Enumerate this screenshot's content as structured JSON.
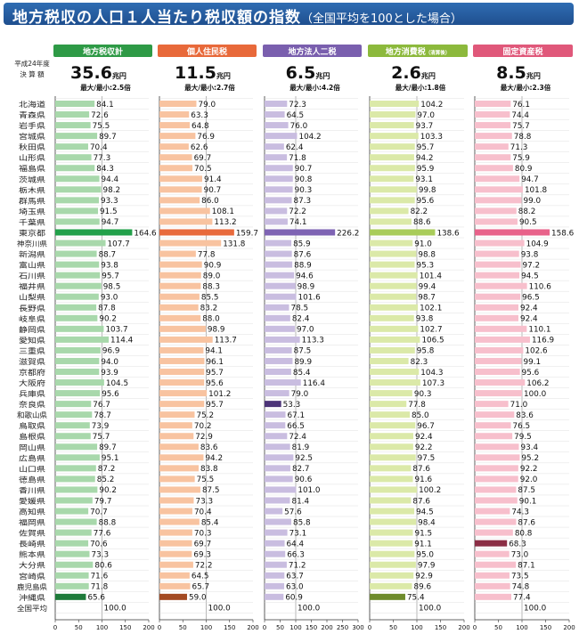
{
  "title": "地方税収の人口１人当たり税収額の指数",
  "subtitle": "（全国平均を100とした場合）",
  "year_label_1": "平成24年度",
  "year_label_2": "決 算 額",
  "chart_data": {
    "type": "bar",
    "orientation": "horizontal",
    "baseline_value": 100,
    "categories": [
      "北海道",
      "青森県",
      "岩手県",
      "宮城県",
      "秋田県",
      "山形県",
      "福島県",
      "茨城県",
      "栃木県",
      "群馬県",
      "埼玉県",
      "千葉県",
      "東京都",
      "神奈川県",
      "新潟県",
      "富山県",
      "石川県",
      "福井県",
      "山梨県",
      "長野県",
      "岐阜県",
      "静岡県",
      "愛知県",
      "三重県",
      "滋賀県",
      "京都府",
      "大阪府",
      "兵庫県",
      "奈良県",
      "和歌山県",
      "鳥取県",
      "島根県",
      "岡山県",
      "広島県",
      "山口県",
      "徳島県",
      "香川県",
      "愛媛県",
      "高知県",
      "福岡県",
      "佐賀県",
      "長崎県",
      "熊本県",
      "大分県",
      "宮崎県",
      "鹿児島県",
      "沖縄県",
      "全国平均"
    ],
    "series": [
      {
        "name": "地方税収計",
        "total": "35.6",
        "unit": "兆円",
        "ratio": "最大/最小:2.5倍",
        "xlim": [
          0,
          200
        ],
        "ticks": [
          "0",
          "50",
          "100",
          "150",
          "200"
        ],
        "color": "#a8d8ab",
        "header_color": "#2e9a46",
        "max_color": "#22a04a",
        "min_color": "#1e7a3a",
        "max_index": 12,
        "min_index": 46,
        "values": [
          84.1,
          72.6,
          75.5,
          89.7,
          70.4,
          77.3,
          84.3,
          94.4,
          98.2,
          93.3,
          91.5,
          94.7,
          164.6,
          107.7,
          88.7,
          93.8,
          95.7,
          98.5,
          93.0,
          87.8,
          90.2,
          103.7,
          114.4,
          96.9,
          94.0,
          93.9,
          104.5,
          95.6,
          76.7,
          78.7,
          73.9,
          75.7,
          89.7,
          95.1,
          87.2,
          85.2,
          90.2,
          79.7,
          70.7,
          88.8,
          77.6,
          70.6,
          73.3,
          80.6,
          71.6,
          71.8,
          65.6,
          100.0
        ]
      },
      {
        "name": "個人住民税",
        "total": "11.5",
        "unit": "兆円",
        "ratio": "最大/最小:2.7倍",
        "xlim": [
          0,
          200
        ],
        "ticks": [
          "0",
          "50",
          "100",
          "150",
          "200"
        ],
        "color": "#f8c3a0",
        "header_color": "#e8693a",
        "max_color": "#e86a3c",
        "min_color": "#a34a22",
        "max_index": 12,
        "min_index": 46,
        "values": [
          79.0,
          63.3,
          64.8,
          76.9,
          62.6,
          69.7,
          70.5,
          91.4,
          90.7,
          86.0,
          108.1,
          113.2,
          159.7,
          131.8,
          77.8,
          90.9,
          89.0,
          88.3,
          85.5,
          83.2,
          88.0,
          98.9,
          113.7,
          94.1,
          96.1,
          95.7,
          95.6,
          101.2,
          95.7,
          75.2,
          70.2,
          72.9,
          83.6,
          94.2,
          83.8,
          75.5,
          87.5,
          73.3,
          70.4,
          85.4,
          70.3,
          69.7,
          69.3,
          72.2,
          64.5,
          65.7,
          59.0,
          100.0
        ]
      },
      {
        "name": "地方法人二税",
        "total": "6.5",
        "unit": "兆円",
        "ratio": "最大/最小:4.2倍",
        "xlim": [
          0,
          300
        ],
        "ticks": [
          "0",
          "50",
          "100",
          "150",
          "200",
          "250",
          "300"
        ],
        "color": "#c9bde0",
        "header_color": "#7a5fae",
        "max_color": "#7e63b3",
        "min_color": "#4c3478",
        "max_index": 12,
        "min_index": 28,
        "values": [
          72.3,
          64.5,
          76.0,
          104.2,
          62.4,
          71.8,
          90.7,
          90.8,
          90.3,
          87.3,
          72.2,
          74.1,
          226.2,
          85.9,
          87.6,
          88.9,
          94.6,
          98.9,
          101.6,
          78.5,
          82.4,
          97.0,
          113.3,
          87.5,
          89.9,
          85.4,
          116.4,
          79.0,
          53.3,
          67.1,
          66.5,
          72.4,
          81.9,
          92.5,
          82.7,
          90.6,
          101.0,
          81.4,
          57.6,
          85.8,
          73.1,
          64.4,
          66.3,
          71.2,
          63.7,
          63.0,
          60.9,
          100.0
        ]
      },
      {
        "name": "地方消費税",
        "name_note": "（清算後）",
        "total": "2.6",
        "unit": "兆円",
        "ratio": "最大/最小:1.8倍",
        "xlim": [
          0,
          200
        ],
        "ticks": [
          "0",
          "50",
          "100",
          "150",
          "200"
        ],
        "color": "#dbe9a8",
        "header_color": "#8cb93c",
        "max_color": "#a9cc5a",
        "min_color": "#6e8b2c",
        "max_index": 12,
        "min_index": 46,
        "values": [
          104.2,
          97.0,
          93.7,
          103.3,
          95.7,
          94.2,
          95.9,
          93.1,
          99.8,
          95.6,
          82.2,
          88.6,
          138.6,
          91.0,
          98.8,
          95.3,
          101.4,
          99.4,
          98.7,
          102.1,
          93.8,
          102.7,
          106.5,
          95.8,
          82.3,
          104.3,
          107.3,
          90.3,
          77.8,
          85.0,
          96.7,
          92.4,
          92.2,
          97.5,
          87.6,
          91.6,
          100.2,
          87.6,
          94.5,
          98.4,
          91.5,
          91.1,
          95.0,
          97.9,
          92.9,
          89.6,
          75.4,
          100.0
        ]
      },
      {
        "name": "固定資産税",
        "total": "8.5",
        "unit": "兆円",
        "ratio": "最大/最小:2.3倍",
        "xlim": [
          0,
          200
        ],
        "ticks": [
          "0",
          "50",
          "100",
          "150",
          "200"
        ],
        "color": "#f7bfcc",
        "header_color": "#e0587a",
        "max_color": "#e8628a",
        "min_color": "#8b2e45",
        "max_index": 12,
        "min_index": 41,
        "values": [
          76.1,
          74.4,
          75.7,
          78.8,
          71.3,
          75.9,
          80.9,
          94.7,
          101.8,
          99.0,
          88.2,
          90.5,
          158.6,
          104.9,
          93.8,
          97.2,
          94.5,
          110.6,
          96.5,
          92.4,
          92.4,
          110.1,
          116.9,
          102.6,
          99.1,
          95.6,
          106.2,
          100.0,
          71.0,
          83.6,
          76.5,
          79.5,
          93.4,
          95.2,
          92.2,
          92.0,
          87.5,
          90.1,
          74.3,
          87.6,
          80.8,
          68.3,
          73.0,
          87.1,
          73.5,
          74.8,
          77.4,
          100.0
        ]
      }
    ]
  }
}
